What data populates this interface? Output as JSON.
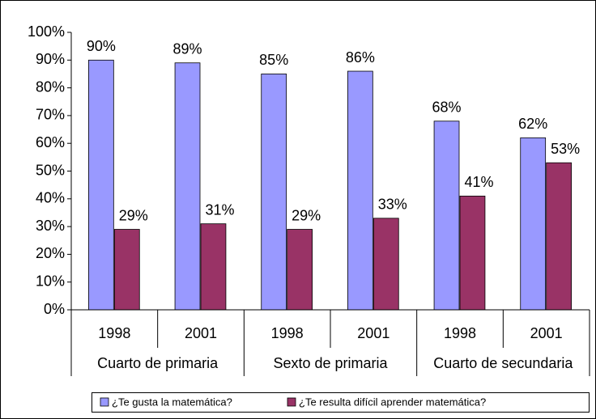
{
  "chart_data": {
    "type": "bar",
    "categories": [
      "1998",
      "2001",
      "1998",
      "2001",
      "1998",
      "2001"
    ],
    "category_groups": [
      "Cuarto de primaria",
      "Sexto de primaria",
      "Cuarto de secundaria"
    ],
    "series": [
      {
        "name": "¿Te gusta la matemática?",
        "color": "#9999ff",
        "values": [
          90,
          89,
          85,
          86,
          68,
          62
        ],
        "value_labels": [
          "90%",
          "89%",
          "85%",
          "86%",
          "68%",
          "62%"
        ]
      },
      {
        "name": "¿Te resulta difícil aprender matemática?",
        "color": "#993366",
        "values": [
          29,
          31,
          29,
          33,
          41,
          53
        ],
        "value_labels": [
          "29%",
          "31%",
          "29%",
          "33%",
          "41%",
          "53%"
        ]
      }
    ],
    "ylim": [
      0,
      100
    ],
    "yticks": [
      {
        "value": 0,
        "label": "0%"
      },
      {
        "value": 10,
        "label": "10%"
      },
      {
        "value": 20,
        "label": "20%"
      },
      {
        "value": 30,
        "label": "30%"
      },
      {
        "value": 40,
        "label": "40%"
      },
      {
        "value": 50,
        "label": "50%"
      },
      {
        "value": 60,
        "label": "60%"
      },
      {
        "value": 70,
        "label": "70%"
      },
      {
        "value": 80,
        "label": "80%"
      },
      {
        "value": 90,
        "label": "90%"
      },
      {
        "value": 100,
        "label": "100%"
      }
    ],
    "grid": false,
    "legend": "bottom"
  }
}
